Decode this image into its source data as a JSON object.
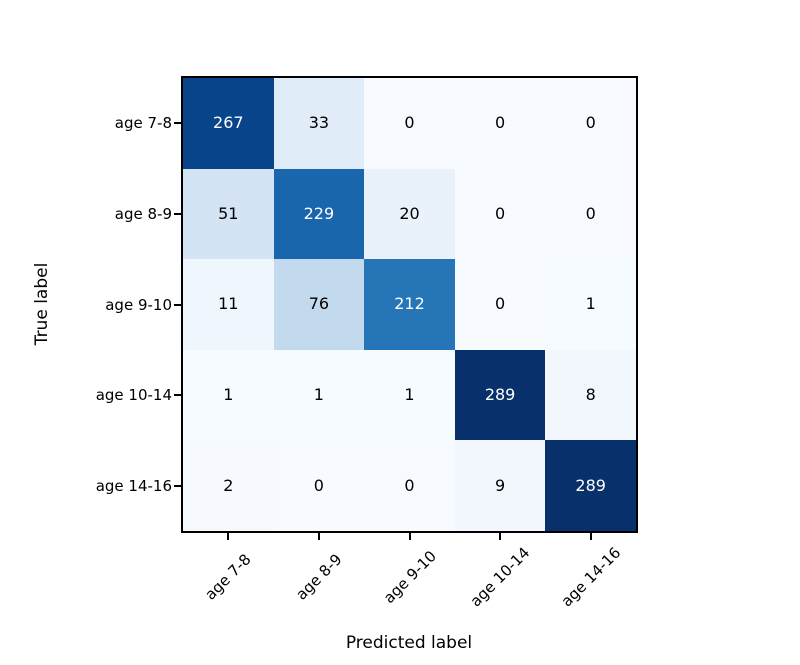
{
  "chart_data": {
    "type": "heatmap",
    "title": "",
    "xlabel": "Predicted label",
    "ylabel": "True label",
    "x_categories": [
      "age 7-8",
      "age 8-9",
      "age 9-10",
      "age 10-14",
      "age 14-16"
    ],
    "y_categories": [
      "age 7-8",
      "age 8-9",
      "age 9-10",
      "age 10-14",
      "age 14-16"
    ],
    "matrix": [
      [
        267,
        33,
        0,
        0,
        0
      ],
      [
        51,
        229,
        20,
        0,
        0
      ],
      [
        11,
        76,
        212,
        0,
        1
      ],
      [
        1,
        1,
        1,
        289,
        8
      ],
      [
        2,
        0,
        0,
        9,
        289
      ]
    ],
    "vmin": 0,
    "vmax": 289,
    "colormap": "Blues",
    "colormap_stops": [
      "#f7fbff",
      "#deebf7",
      "#c6dbef",
      "#9ecae1",
      "#6baed6",
      "#4292c6",
      "#2171b5",
      "#08519c",
      "#08306b"
    ],
    "cell_text_light": "#ffffff",
    "cell_text_dark": "#000000",
    "text_color_threshold": 144.5,
    "axis_color": "#000000",
    "background_color": "#ffffff",
    "legend": "none",
    "grid": "off"
  }
}
